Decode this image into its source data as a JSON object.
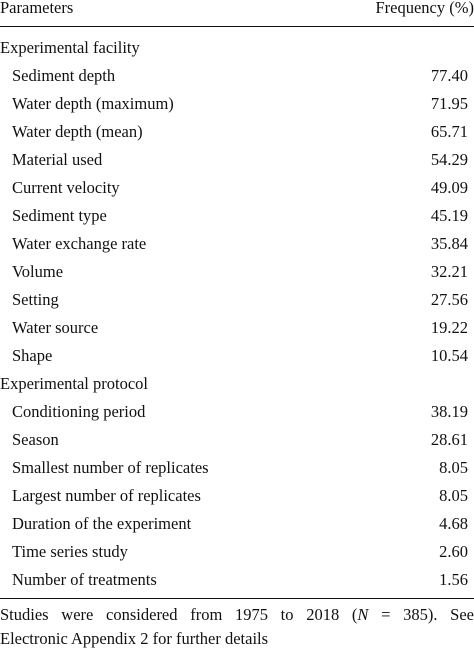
{
  "header": {
    "parameters": "Parameters",
    "frequency": "Frequency (%)"
  },
  "sections": [
    {
      "title": "Experimental facility",
      "rows": [
        {
          "label": "Sediment depth",
          "value": "77.40"
        },
        {
          "label": "Water depth (maximum)",
          "value": "71.95"
        },
        {
          "label": "Water depth (mean)",
          "value": "65.71"
        },
        {
          "label": "Material used",
          "value": "54.29"
        },
        {
          "label": "Current velocity",
          "value": "49.09"
        },
        {
          "label": "Sediment type",
          "value": "45.19"
        },
        {
          "label": "Water exchange rate",
          "value": "35.84"
        },
        {
          "label": "Volume",
          "value": "32.21"
        },
        {
          "label": "Setting",
          "value": "27.56"
        },
        {
          "label": "Water source",
          "value": "19.22"
        },
        {
          "label": "Shape",
          "value": "10.54"
        }
      ]
    },
    {
      "title": "Experimental protocol",
      "rows": [
        {
          "label": "Conditioning period",
          "value": "38.19"
        },
        {
          "label": "Season",
          "value": "28.61"
        },
        {
          "label": "Smallest number of replicates",
          "value": "8.05"
        },
        {
          "label": "Largest number of replicates",
          "value": "8.05"
        },
        {
          "label": "Duration of the experiment",
          "value": "4.68"
        },
        {
          "label": "Time series study",
          "value": "2.60"
        },
        {
          "label": "Number of treatments",
          "value": "1.56"
        }
      ]
    }
  ],
  "footnote": {
    "line1_prefix": "Studies were considered from 1975 to 2018 (",
    "n_symbol": "N",
    "line1_suffix": " = 385). See",
    "line2": "Electronic Appendix 2 for further details"
  }
}
